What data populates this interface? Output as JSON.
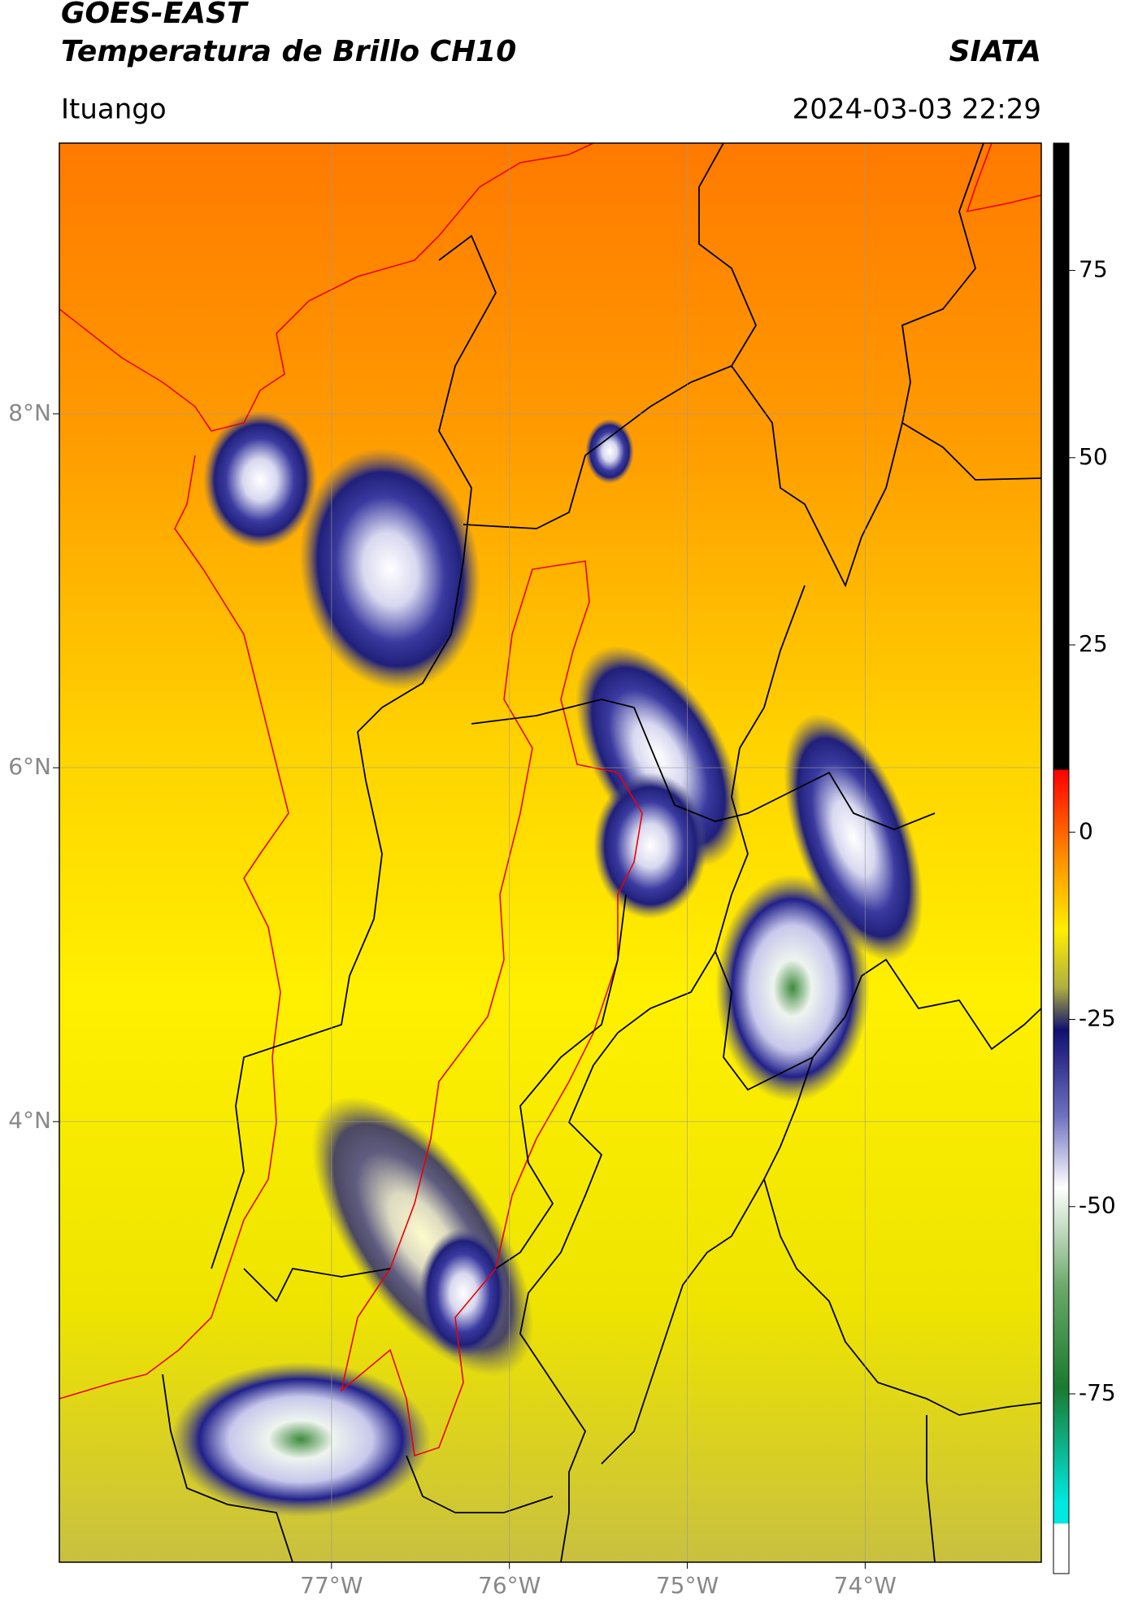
{
  "header": {
    "title_line1": "GOES-EAST",
    "title_line2": "Temperatura de Brillo CH10",
    "org": "SIATA",
    "location": "Ituango",
    "datetime": "2024-03-03 22:29"
  },
  "map": {
    "lon_lim": [
      -78.53,
      -73.01
    ],
    "lat_lim": [
      1.51,
      9.53
    ],
    "lat_ticks": [
      {
        "value": 8,
        "label": "8°N"
      },
      {
        "value": 6,
        "label": "6°N"
      },
      {
        "value": 4,
        "label": "4°N"
      }
    ],
    "lon_ticks": [
      {
        "value": -77,
        "label": "77°W"
      },
      {
        "value": -76,
        "label": "76°W"
      },
      {
        "value": -75,
        "label": "75°W"
      },
      {
        "value": -74,
        "label": "74°W"
      }
    ]
  },
  "colorbar": {
    "lim": [
      -99,
      92
    ],
    "ticks": [
      75,
      50,
      25,
      0,
      -25,
      -50,
      -75
    ]
  }
}
